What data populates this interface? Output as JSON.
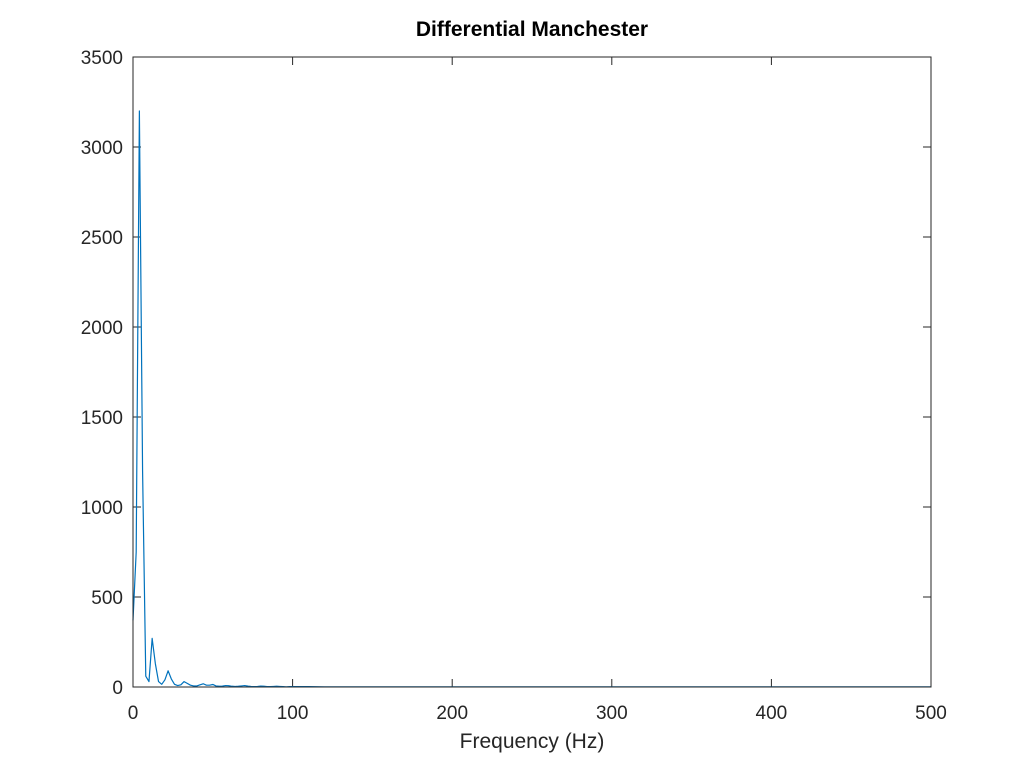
{
  "chart_data": {
    "type": "line",
    "title": "Differential Manchester",
    "xlabel": "Frequency (Hz)",
    "ylabel": "",
    "xlim": [
      0,
      500
    ],
    "ylim": [
      0,
      3500
    ],
    "x_ticks": [
      0,
      100,
      200,
      300,
      400,
      500
    ],
    "y_ticks": [
      0,
      500,
      1000,
      1500,
      2000,
      2500,
      3000,
      3500
    ],
    "x_tick_labels": [
      "0",
      "100",
      "200",
      "300",
      "400",
      "500"
    ],
    "y_tick_labels": [
      "0",
      "500",
      "1000",
      "1500",
      "2000",
      "2500",
      "3000",
      "3500"
    ],
    "grid": false,
    "box": true,
    "series": [
      {
        "color": "#0072bd",
        "x": [
          0,
          2,
          4,
          6,
          8,
          10,
          12,
          14,
          16,
          18,
          20,
          22,
          24,
          26,
          28,
          30,
          32,
          34,
          36,
          38,
          40,
          42,
          44,
          46,
          48,
          50,
          52,
          54,
          56,
          58,
          60,
          62,
          64,
          66,
          68,
          70,
          72,
          74,
          76,
          78,
          80,
          82,
          84,
          86,
          88,
          90,
          92,
          94,
          96,
          98,
          100,
          110,
          120,
          130,
          140,
          150,
          160,
          170,
          180,
          190,
          200,
          220,
          240,
          260,
          280,
          300,
          320,
          340,
          360,
          380,
          400,
          420,
          440,
          460,
          480,
          500
        ],
        "y": [
          370,
          750,
          3200,
          1200,
          60,
          30,
          270,
          130,
          30,
          15,
          40,
          90,
          45,
          15,
          8,
          12,
          30,
          20,
          10,
          6,
          6,
          12,
          18,
          10,
          10,
          14,
          6,
          4,
          5,
          8,
          7,
          4,
          3,
          4,
          6,
          8,
          5,
          3,
          2,
          3,
          5,
          4,
          2,
          2,
          3,
          4,
          3,
          2,
          1,
          2,
          2,
          2,
          1,
          1,
          1,
          1,
          1,
          1,
          1,
          1,
          1,
          0.5,
          0.5,
          0.5,
          0.5,
          0.5,
          0.5,
          0.5,
          0.5,
          0.5,
          0.5,
          0.5,
          0.5,
          0.5,
          0.5,
          0.5
        ]
      }
    ]
  }
}
